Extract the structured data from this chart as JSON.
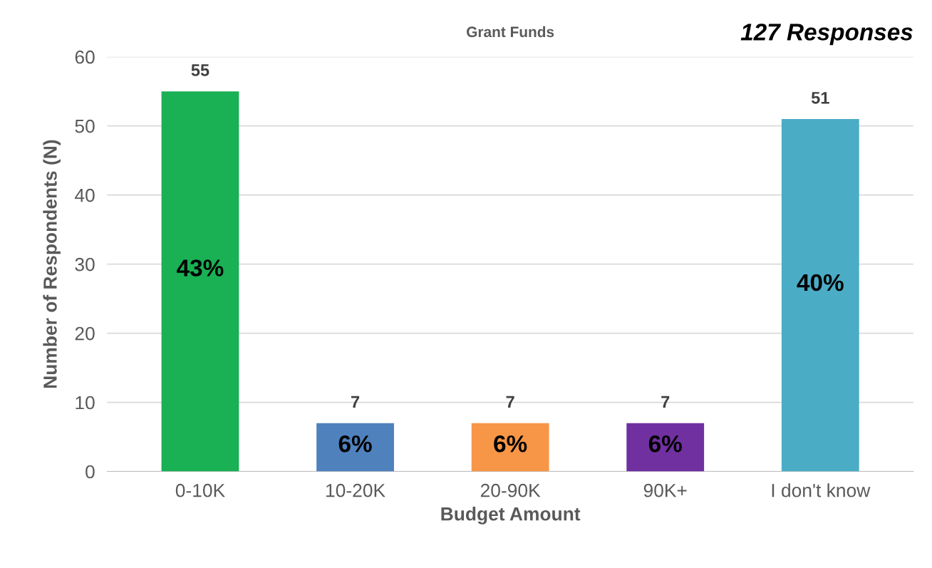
{
  "chart_data": {
    "type": "bar",
    "title": "Grant Funds",
    "xlabel": "Budget Amount",
    "ylabel": "Number of Respondents (N)",
    "categories": [
      "0-10K",
      "10-20K",
      "20-90K",
      "90K+",
      "I don't know"
    ],
    "values": [
      55,
      7,
      7,
      7,
      51
    ],
    "colors": [
      "#1ab054",
      "#4f81bd",
      "#f79646",
      "#7030a0",
      "#4bacc6"
    ],
    "ylim": [
      0,
      60
    ],
    "yticks": [
      0,
      10,
      20,
      30,
      40,
      50,
      60
    ],
    "grid": "y",
    "data_labels": true,
    "annotations": [
      "127 Responses",
      "43%",
      "6%",
      "6%",
      "6%",
      "40%"
    ]
  }
}
